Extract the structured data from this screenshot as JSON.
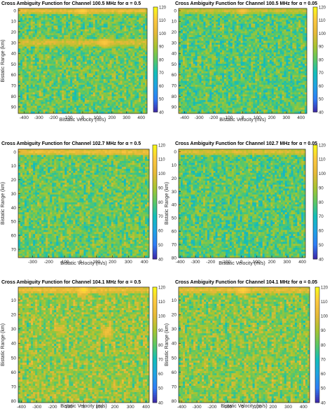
{
  "colorbar": {
    "min": 40,
    "max": 120,
    "ticks": [
      40,
      50,
      60,
      70,
      80,
      90,
      100,
      110,
      120
    ],
    "colormap": [
      "#3e26a8",
      "#2e7df7",
      "#1fa4e3",
      "#12beb9",
      "#5cc863",
      "#a8c430",
      "#e5b937",
      "#fcc83f",
      "#f9fb15"
    ]
  },
  "chart_data": [
    {
      "type": "heatmap",
      "title": "Cross Ambiguity Function for Channel 100.5 MHz for α = 0.5",
      "xlabel": "Bistatic Velocity (m/s)",
      "ylabel": "Bistatic Range (km)",
      "xlim": [
        -440,
        440
      ],
      "ylim": [
        -2,
        96
      ],
      "xticks": [
        -400,
        -300,
        -200,
        -100,
        0,
        100,
        200,
        300,
        400
      ],
      "yticks": [
        0,
        10,
        20,
        30,
        40,
        50,
        60,
        70,
        80,
        90
      ],
      "clim": [
        40,
        120
      ],
      "features": {
        "base": 82,
        "bright_rows": [
          [
            0,
            104
          ],
          [
            29,
            98
          ],
          [
            31,
            97
          ]
        ],
        "bright_spots": [
          [
            0,
            0,
            112
          ],
          [
            150,
            30,
            110
          ]
        ]
      }
    },
    {
      "type": "heatmap",
      "title": "Cross Ambiguity Function for Channel 100.5 MHz for α = 0.05",
      "xlabel": "Bistatic Velocity (m/s)",
      "ylabel": "",
      "xlim": [
        -440,
        440
      ],
      "ylim": [
        -2,
        96
      ],
      "xticks": [
        -400,
        -300,
        -200,
        -100,
        0,
        100,
        200,
        300,
        400
      ],
      "yticks": [
        0,
        10,
        20,
        30,
        40,
        50,
        60,
        70,
        80,
        90
      ],
      "clim": [
        40,
        120
      ],
      "features": {
        "base": 80,
        "bright_rows": [
          [
            0,
            98
          ]
        ],
        "bright_spots": [
          [
            0,
            0,
            108
          ]
        ]
      }
    },
    {
      "type": "heatmap",
      "title": "Cross Ambiguity Function for Channel 102.7 MHz for α = 0.5",
      "xlabel": "Bistatic Velocity (m/s)",
      "ylabel": "Bistatic Range (km)",
      "xlim": [
        -390,
        430
      ],
      "ylim": [
        -2,
        76
      ],
      "xticks": [
        -300,
        -200,
        -100,
        0,
        100,
        200,
        300,
        400
      ],
      "yticks": [
        0,
        10,
        20,
        30,
        40,
        50,
        60,
        70
      ],
      "clim": [
        40,
        120
      ],
      "features": {
        "base": 82,
        "bright_rows": [
          [
            0,
            104
          ]
        ],
        "bright_spots": []
      }
    },
    {
      "type": "heatmap",
      "title": "Cross Ambiguity Function for Channel 102.7 MHz for α = 0.05",
      "xlabel": "Bistatic Velocity (m/s)",
      "ylabel": "Bistatic Range (km)",
      "xlim": [
        -410,
        420
      ],
      "ylim": [
        -2,
        80
      ],
      "xticks": [
        -400,
        -300,
        -200,
        -100,
        0,
        100,
        200,
        300,
        400
      ],
      "yticks": [
        0,
        10,
        20,
        30,
        40,
        50,
        60,
        70,
        80
      ],
      "clim": [
        40,
        120
      ],
      "features": {
        "base": 80,
        "bright_rows": [
          [
            0,
            100
          ]
        ],
        "bright_spots": []
      }
    },
    {
      "type": "heatmap",
      "title": "Cross Ambiguity Function for Channel 104.1 MHz for α = 0.5",
      "xlabel": "Bistatic Velocity (m/s)",
      "ylabel": "Bistatic Range (km)",
      "xlim": [
        -420,
        420
      ],
      "ylim": [
        1,
        81
      ],
      "xticks": [
        -400,
        -300,
        -200,
        -100,
        0,
        100,
        200,
        300,
        400
      ],
      "yticks": [
        10,
        20,
        30,
        40,
        50,
        60,
        70,
        80
      ],
      "clim": [
        40,
        120
      ],
      "features": {
        "base": 88,
        "bright_rows": [
          [
            3,
            104
          ]
        ],
        "bright_spots": [
          [
            0,
            3,
            114
          ],
          [
            150,
            32,
            106
          ],
          [
            -150,
            30,
            100
          ]
        ]
      }
    },
    {
      "type": "heatmap",
      "title": "Cross Ambiguity Function for Channel 104.1 MHz for α = 0.05",
      "xlabel": "Bistatic Velocity (m/s)",
      "ylabel": "Bistatic Range (km)",
      "xlim": [
        -420,
        440
      ],
      "ylim": [
        1,
        81
      ],
      "xticks": [
        -400,
        -300,
        -200,
        -100,
        0,
        100,
        200,
        300,
        400
      ],
      "yticks": [
        10,
        20,
        30,
        40,
        50,
        60,
        70,
        80
      ],
      "clim": [
        40,
        120
      ],
      "features": {
        "base": 86,
        "bright_rows": [
          [
            3,
            102
          ]
        ],
        "bright_spots": [
          [
            0,
            3,
            112
          ]
        ]
      }
    }
  ]
}
